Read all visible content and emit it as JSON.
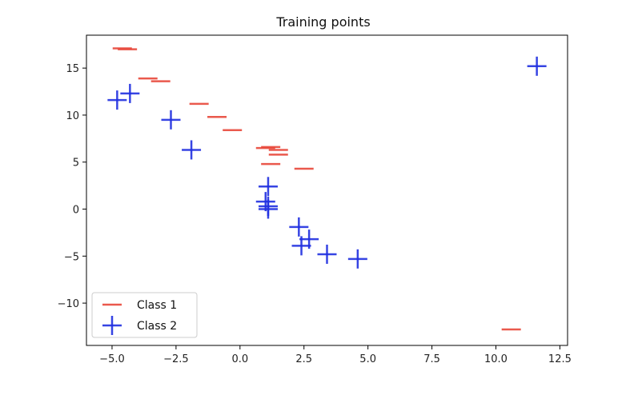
{
  "chart_data": {
    "type": "scatter",
    "title": "Training points",
    "xlabel": "",
    "ylabel": "",
    "xlim": [
      -6,
      12.8
    ],
    "ylim": [
      -14.5,
      18.5
    ],
    "x_ticks": [
      -5.0,
      -2.5,
      0.0,
      2.5,
      5.0,
      7.5,
      10.0,
      12.5
    ],
    "x_tick_labels": [
      "−5.0",
      "−2.5",
      "0.0",
      "2.5",
      "5.0",
      "7.5",
      "10.0",
      "12.5"
    ],
    "y_ticks": [
      -10,
      -5,
      0,
      5,
      10,
      15
    ],
    "y_tick_labels": [
      "−10",
      "−5",
      "0",
      "5",
      "10",
      "15"
    ],
    "grid": false,
    "legend_position": "lower-left",
    "series": [
      {
        "name": "Class 1",
        "marker": "_",
        "color": "#e8473a",
        "points": [
          [
            -4.6,
            17.1
          ],
          [
            -4.4,
            17.0
          ],
          [
            -3.6,
            13.9
          ],
          [
            -3.1,
            13.6
          ],
          [
            -1.6,
            11.2
          ],
          [
            -0.9,
            9.8
          ],
          [
            -0.3,
            8.4
          ],
          [
            1.2,
            6.6
          ],
          [
            1.5,
            6.3
          ],
          [
            1.0,
            6.5
          ],
          [
            1.5,
            5.8
          ],
          [
            1.2,
            4.8
          ],
          [
            2.5,
            4.3
          ],
          [
            10.6,
            -12.8
          ]
        ]
      },
      {
        "name": "Class 2",
        "marker": "+",
        "color": "#2030e0",
        "points": [
          [
            -4.8,
            11.6
          ],
          [
            -4.3,
            12.3
          ],
          [
            -2.7,
            9.5
          ],
          [
            -1.9,
            6.3
          ],
          [
            1.1,
            2.4
          ],
          [
            1.0,
            0.8
          ],
          [
            1.1,
            0.3
          ],
          [
            1.1,
            0.0
          ],
          [
            2.3,
            -1.9
          ],
          [
            2.7,
            -3.2
          ],
          [
            2.4,
            -3.9
          ],
          [
            3.4,
            -4.8
          ],
          [
            4.6,
            -5.3
          ],
          [
            11.6,
            15.2
          ]
        ]
      }
    ]
  }
}
